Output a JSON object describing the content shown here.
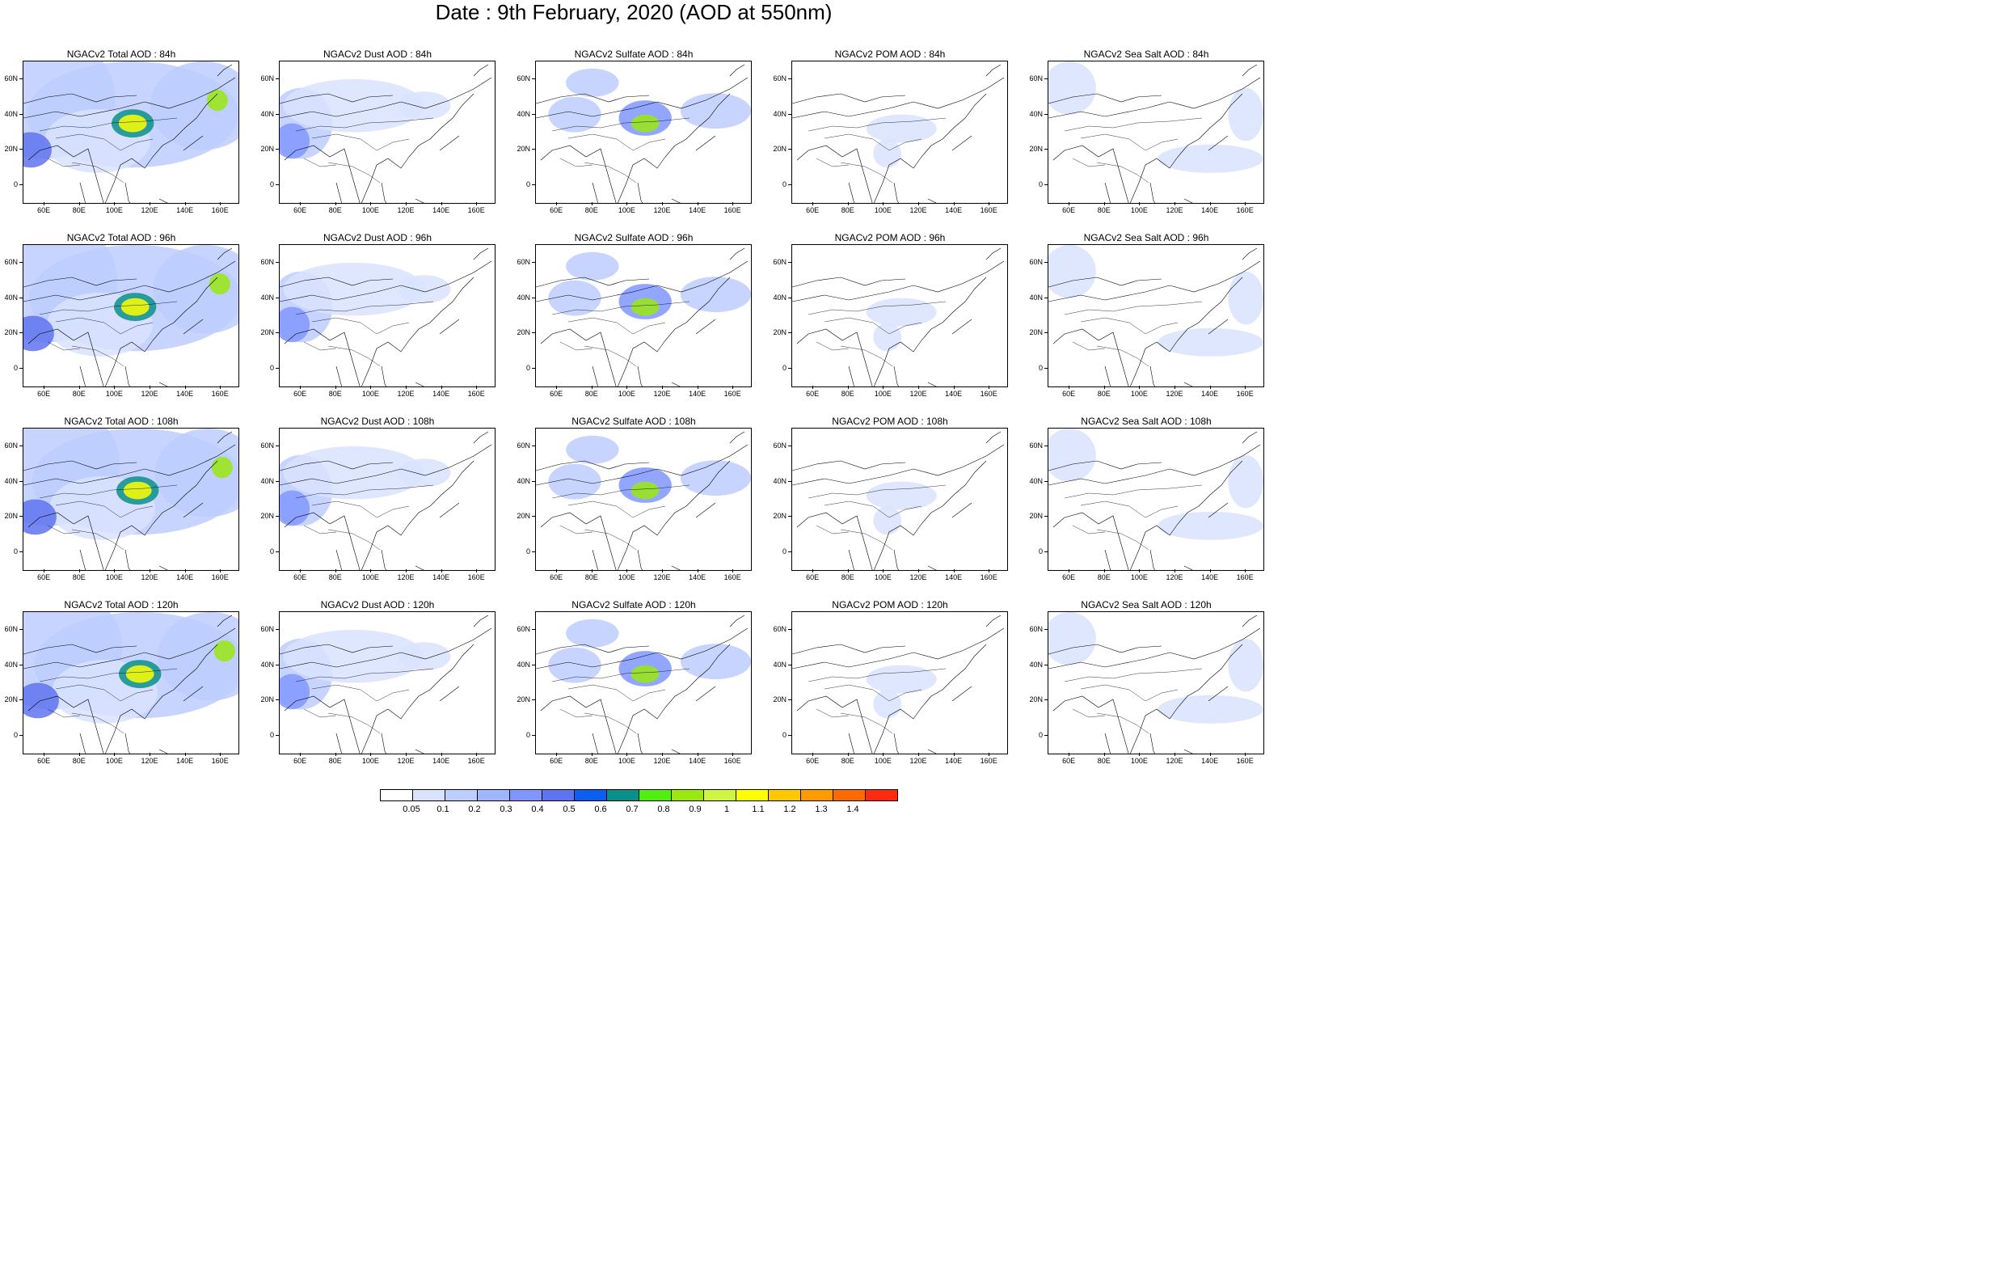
{
  "title": "Date : 9th February, 2020 (AOD at 550nm)",
  "rows": [
    {
      "panels": [
        "NGACv2 Total AOD : 84h",
        "NGACv2 Dust AOD : 84h",
        "NGACv2 Sulfate AOD : 84h",
        "NGACv2 POM AOD : 84h",
        "NGACv2 Sea Salt AOD : 84h"
      ]
    },
    {
      "panels": [
        "NGACv2 Total AOD : 96h",
        "NGACv2 Dust AOD : 96h",
        "NGACv2 Sulfate AOD : 96h",
        "NGACv2 POM AOD : 96h",
        "NGACv2 Sea Salt AOD : 96h"
      ]
    },
    {
      "panels": [
        "NGACv2 Total AOD : 108h",
        "NGACv2 Dust AOD : 108h",
        "NGACv2 Sulfate AOD : 108h",
        "NGACv2 POM AOD : 108h",
        "NGACv2 Sea Salt AOD : 108h"
      ]
    },
    {
      "panels": [
        "NGACv2 Total AOD : 120h",
        "NGACv2 Dust AOD : 120h",
        "NGACv2 Sulfate AOD : 120h",
        "NGACv2 POM AOD : 120h",
        "NGACv2 Sea Salt  AOD : 120h"
      ]
    }
  ],
  "y_ticks": [
    "60N",
    "40N",
    "20N",
    "0"
  ],
  "x_ticks": [
    "60E",
    "80E",
    "100E",
    "120E",
    "140E",
    "160E"
  ],
  "colorbar": {
    "labels": [
      "0.05",
      "0.1",
      "0.2",
      "0.3",
      "0.4",
      "0.5",
      "0.6",
      "0.7",
      "0.8",
      "0.9",
      "1",
      "1.1",
      "1.2",
      "1.3",
      "1.4"
    ],
    "colors": [
      "#ffffff",
      "#d9e3ff",
      "#bccdff",
      "#9fb6ff",
      "#8096ff",
      "#5f73f0",
      "#0a5ef0",
      "#0a8f8a",
      "#52ee10",
      "#9ae810",
      "#cdf542",
      "#ffff00",
      "#ffc800",
      "#ff9a00",
      "#ff6a00",
      "#ff2a10"
    ]
  }
}
